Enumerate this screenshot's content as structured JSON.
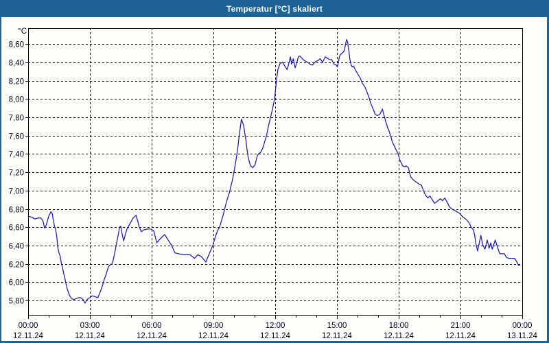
{
  "window": {
    "title": "Temperatur [°C] skaliert"
  },
  "colors": {
    "titlebar": "#1d6395",
    "window_border": "#1d6395",
    "client_background": "#fdfef9",
    "line": "#2121ac",
    "grid": "#000000",
    "frame": "#000000",
    "label_text": "#00001e"
  },
  "chart_data": {
    "type": "line",
    "title": "Temperatur [°C] skaliert",
    "ylabel": "°C",
    "xlabel": "",
    "grid": "dashed",
    "legend": "none",
    "ylim": [
      5.64,
      8.77
    ],
    "xlim_hours": [
      0,
      24
    ],
    "x_minor_step_hours": 1,
    "y_ticks": [
      {
        "value": 5.8,
        "label": "5,80"
      },
      {
        "value": 6.0,
        "label": "6,00"
      },
      {
        "value": 6.2,
        "label": "6,20"
      },
      {
        "value": 6.4,
        "label": "6,40"
      },
      {
        "value": 6.6,
        "label": "6,60"
      },
      {
        "value": 6.8,
        "label": "6,80"
      },
      {
        "value": 7.0,
        "label": "7,00"
      },
      {
        "value": 7.2,
        "label": "7,20"
      },
      {
        "value": 7.4,
        "label": "7,40"
      },
      {
        "value": 7.6,
        "label": "7,60"
      },
      {
        "value": 7.8,
        "label": "7,80"
      },
      {
        "value": 8.0,
        "label": "8,00"
      },
      {
        "value": 8.2,
        "label": "8,20"
      },
      {
        "value": 8.4,
        "label": "8,40"
      },
      {
        "value": 8.6,
        "label": "8,60"
      }
    ],
    "x_ticks": [
      {
        "hour": 0,
        "time": "00:00",
        "date": "12.11.24"
      },
      {
        "hour": 3,
        "time": "03:00",
        "date": "12.11.24"
      },
      {
        "hour": 6,
        "time": "06:00",
        "date": "12.11.24"
      },
      {
        "hour": 9,
        "time": "09:00",
        "date": "12.11.24"
      },
      {
        "hour": 12,
        "time": "12:00",
        "date": "12.11.24"
      },
      {
        "hour": 15,
        "time": "15:00",
        "date": "12.11.24"
      },
      {
        "hour": 18,
        "time": "18:00",
        "date": "12.11.24"
      },
      {
        "hour": 21,
        "time": "21:00",
        "date": "12.11.24"
      },
      {
        "hour": 24,
        "time": "00:00",
        "date": "13.11.24"
      }
    ],
    "series": [
      {
        "name": "Temperatur [°C] skaliert",
        "color": "#2121ac",
        "points": [
          [
            0.0,
            6.72
          ],
          [
            0.17,
            6.71
          ],
          [
            0.33,
            6.69
          ],
          [
            0.5,
            6.7
          ],
          [
            0.61,
            6.7
          ],
          [
            0.72,
            6.67
          ],
          [
            0.8,
            6.59
          ],
          [
            0.89,
            6.63
          ],
          [
            1.0,
            6.72
          ],
          [
            1.11,
            6.77
          ],
          [
            1.17,
            6.75
          ],
          [
            1.22,
            6.68
          ],
          [
            1.28,
            6.61
          ],
          [
            1.33,
            6.58
          ],
          [
            1.39,
            6.5
          ],
          [
            1.44,
            6.38
          ],
          [
            1.5,
            6.32
          ],
          [
            1.56,
            6.28
          ],
          [
            1.61,
            6.21
          ],
          [
            1.67,
            6.16
          ],
          [
            1.72,
            6.1
          ],
          [
            1.78,
            6.05
          ],
          [
            1.83,
            5.99
          ],
          [
            1.89,
            5.93
          ],
          [
            1.94,
            5.9
          ],
          [
            2.0,
            5.86
          ],
          [
            2.11,
            5.82
          ],
          [
            2.22,
            5.81
          ],
          [
            2.33,
            5.82
          ],
          [
            2.44,
            5.83
          ],
          [
            2.56,
            5.83
          ],
          [
            2.67,
            5.81
          ],
          [
            2.76,
            5.77
          ],
          [
            2.83,
            5.8
          ],
          [
            2.91,
            5.82
          ],
          [
            3.0,
            5.83
          ],
          [
            3.11,
            5.85
          ],
          [
            3.28,
            5.84
          ],
          [
            3.39,
            5.83
          ],
          [
            3.44,
            5.86
          ],
          [
            3.53,
            5.91
          ],
          [
            3.61,
            5.96
          ],
          [
            3.67,
            6.01
          ],
          [
            3.78,
            6.08
          ],
          [
            3.89,
            6.16
          ],
          [
            3.94,
            6.18
          ],
          [
            4.06,
            6.2
          ],
          [
            4.11,
            6.22
          ],
          [
            4.2,
            6.31
          ],
          [
            4.28,
            6.41
          ],
          [
            4.39,
            6.53
          ],
          [
            4.44,
            6.6
          ],
          [
            4.5,
            6.61
          ],
          [
            4.56,
            6.53
          ],
          [
            4.64,
            6.45
          ],
          [
            4.72,
            6.52
          ],
          [
            4.8,
            6.58
          ],
          [
            4.9,
            6.62
          ],
          [
            5.0,
            6.66
          ],
          [
            5.1,
            6.7
          ],
          [
            5.24,
            6.73
          ],
          [
            5.33,
            6.66
          ],
          [
            5.4,
            6.6
          ],
          [
            5.5,
            6.55
          ],
          [
            5.6,
            6.57
          ],
          [
            5.8,
            6.58
          ],
          [
            5.97,
            6.58
          ],
          [
            6.1,
            6.56
          ],
          [
            6.25,
            6.43
          ],
          [
            6.4,
            6.47
          ],
          [
            6.63,
            6.52
          ],
          [
            6.8,
            6.46
          ],
          [
            6.97,
            6.4
          ],
          [
            7.13,
            6.32
          ],
          [
            7.3,
            6.31
          ],
          [
            7.5,
            6.3
          ],
          [
            7.7,
            6.3
          ],
          [
            7.86,
            6.3
          ],
          [
            8.08,
            6.26
          ],
          [
            8.24,
            6.3
          ],
          [
            8.41,
            6.28
          ],
          [
            8.63,
            6.22
          ],
          [
            8.8,
            6.31
          ],
          [
            8.97,
            6.4
          ],
          [
            9.1,
            6.5
          ],
          [
            9.2,
            6.56
          ],
          [
            9.3,
            6.6
          ],
          [
            9.47,
            6.73
          ],
          [
            9.58,
            6.83
          ],
          [
            9.69,
            6.92
          ],
          [
            9.78,
            6.98
          ],
          [
            9.86,
            7.06
          ],
          [
            9.91,
            7.1
          ],
          [
            10.02,
            7.23
          ],
          [
            10.13,
            7.38
          ],
          [
            10.19,
            7.48
          ],
          [
            10.24,
            7.58
          ],
          [
            10.3,
            7.68
          ],
          [
            10.36,
            7.78
          ],
          [
            10.47,
            7.71
          ],
          [
            10.52,
            7.63
          ],
          [
            10.58,
            7.55
          ],
          [
            10.63,
            7.45
          ],
          [
            10.69,
            7.36
          ],
          [
            10.75,
            7.31
          ],
          [
            10.8,
            7.27
          ],
          [
            10.91,
            7.25
          ],
          [
            11.02,
            7.28
          ],
          [
            11.13,
            7.38
          ],
          [
            11.19,
            7.4
          ],
          [
            11.3,
            7.42
          ],
          [
            11.41,
            7.47
          ],
          [
            11.47,
            7.52
          ],
          [
            11.58,
            7.6
          ],
          [
            11.63,
            7.66
          ],
          [
            11.74,
            7.77
          ],
          [
            11.86,
            7.88
          ],
          [
            11.97,
            8.0
          ],
          [
            12.06,
            8.2
          ],
          [
            12.13,
            8.32
          ],
          [
            12.24,
            8.39
          ],
          [
            12.36,
            8.4
          ],
          [
            12.47,
            8.36
          ],
          [
            12.58,
            8.32
          ],
          [
            12.69,
            8.41
          ],
          [
            12.74,
            8.46
          ],
          [
            12.8,
            8.38
          ],
          [
            12.88,
            8.44
          ],
          [
            12.97,
            8.34
          ],
          [
            13.13,
            8.46
          ],
          [
            13.19,
            8.47
          ],
          [
            13.41,
            8.42
          ],
          [
            13.58,
            8.4
          ],
          [
            13.69,
            8.38
          ],
          [
            13.8,
            8.37
          ],
          [
            13.97,
            8.41
          ],
          [
            14.08,
            8.42
          ],
          [
            14.19,
            8.44
          ],
          [
            14.3,
            8.4
          ],
          [
            14.43,
            8.46
          ],
          [
            14.5,
            8.45
          ],
          [
            14.63,
            8.43
          ],
          [
            14.74,
            8.43
          ],
          [
            14.86,
            8.38
          ],
          [
            14.97,
            8.37
          ],
          [
            15.02,
            8.35
          ],
          [
            15.13,
            8.47
          ],
          [
            15.19,
            8.49
          ],
          [
            15.3,
            8.51
          ],
          [
            15.36,
            8.53
          ],
          [
            15.41,
            8.59
          ],
          [
            15.47,
            8.65
          ],
          [
            15.52,
            8.62
          ],
          [
            15.58,
            8.52
          ],
          [
            15.63,
            8.43
          ],
          [
            15.69,
            8.37
          ],
          [
            15.74,
            8.35
          ],
          [
            15.8,
            8.36
          ],
          [
            15.91,
            8.31
          ],
          [
            16.02,
            8.27
          ],
          [
            16.13,
            8.23
          ],
          [
            16.24,
            8.17
          ],
          [
            16.36,
            8.13
          ],
          [
            16.47,
            8.07
          ],
          [
            16.58,
            8.0
          ],
          [
            16.63,
            7.96
          ],
          [
            16.74,
            7.9
          ],
          [
            16.86,
            7.83
          ],
          [
            16.97,
            7.82
          ],
          [
            17.08,
            7.83
          ],
          [
            17.21,
            7.89
          ],
          [
            17.3,
            7.81
          ],
          [
            17.36,
            7.76
          ],
          [
            17.47,
            7.68
          ],
          [
            17.52,
            7.66
          ],
          [
            17.63,
            7.58
          ],
          [
            17.69,
            7.53
          ],
          [
            17.8,
            7.48
          ],
          [
            17.86,
            7.45
          ],
          [
            17.97,
            7.4
          ],
          [
            18.02,
            7.36
          ],
          [
            18.08,
            7.32
          ],
          [
            18.13,
            7.3
          ],
          [
            18.19,
            7.27
          ],
          [
            18.3,
            7.26
          ],
          [
            18.36,
            7.27
          ],
          [
            18.47,
            7.25
          ],
          [
            18.52,
            7.2
          ],
          [
            18.58,
            7.15
          ],
          [
            18.69,
            7.12
          ],
          [
            18.8,
            7.1
          ],
          [
            19.0,
            7.07
          ],
          [
            19.1,
            7.06
          ],
          [
            19.2,
            7.0
          ],
          [
            19.3,
            6.95
          ],
          [
            19.41,
            6.92
          ],
          [
            19.52,
            6.94
          ],
          [
            19.63,
            6.9
          ],
          [
            19.74,
            6.86
          ],
          [
            19.86,
            6.88
          ],
          [
            20.02,
            6.91
          ],
          [
            20.13,
            6.89
          ],
          [
            20.24,
            6.92
          ],
          [
            20.36,
            6.87
          ],
          [
            20.47,
            6.82
          ],
          [
            20.58,
            6.8
          ],
          [
            20.74,
            6.78
          ],
          [
            20.97,
            6.75
          ],
          [
            21.08,
            6.72
          ],
          [
            21.19,
            6.7
          ],
          [
            21.3,
            6.68
          ],
          [
            21.41,
            6.65
          ],
          [
            21.52,
            6.6
          ],
          [
            21.63,
            6.57
          ],
          [
            21.69,
            6.51
          ],
          [
            21.74,
            6.43
          ],
          [
            21.83,
            6.34
          ],
          [
            21.99,
            6.51
          ],
          [
            22.08,
            6.41
          ],
          [
            22.19,
            6.36
          ],
          [
            22.3,
            6.46
          ],
          [
            22.39,
            6.37
          ],
          [
            22.47,
            6.43
          ],
          [
            22.54,
            6.36
          ],
          [
            22.69,
            6.46
          ],
          [
            22.8,
            6.38
          ],
          [
            22.91,
            6.31
          ],
          [
            23.02,
            6.31
          ],
          [
            23.13,
            6.31
          ],
          [
            23.24,
            6.27
          ],
          [
            23.36,
            6.26
          ],
          [
            23.52,
            6.26
          ],
          [
            23.63,
            6.26
          ],
          [
            23.74,
            6.22
          ],
          [
            23.8,
            6.19
          ],
          [
            23.86,
            6.18
          ]
        ]
      }
    ]
  }
}
